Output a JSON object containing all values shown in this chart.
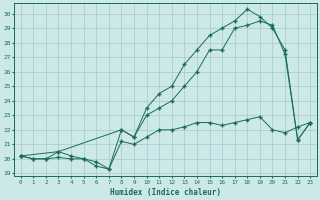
{
  "xlabel": "Humidex (Indice chaleur)",
  "xlim": [
    -0.5,
    23.5
  ],
  "ylim": [
    18.8,
    30.7
  ],
  "xticks": [
    0,
    1,
    2,
    3,
    4,
    5,
    6,
    7,
    8,
    9,
    10,
    11,
    12,
    13,
    14,
    15,
    16,
    17,
    18,
    19,
    20,
    21,
    22,
    23
  ],
  "yticks": [
    19,
    20,
    21,
    22,
    23,
    24,
    25,
    26,
    27,
    28,
    29,
    30
  ],
  "background_color": "#cce8e8",
  "grid_color": "#aacfcf",
  "line_color": "#1a6b5a",
  "line1_x": [
    0,
    1,
    2,
    3,
    4,
    5,
    6,
    7,
    8,
    9,
    10,
    11,
    12,
    13,
    14,
    15,
    16,
    17,
    18,
    19,
    20,
    21,
    22,
    23
  ],
  "line1_y": [
    20.2,
    20.0,
    20.0,
    20.1,
    20.0,
    20.0,
    19.5,
    19.3,
    21.2,
    21.0,
    21.5,
    22.0,
    22.0,
    22.2,
    22.5,
    22.5,
    22.3,
    22.5,
    22.7,
    22.9,
    22.0,
    21.8,
    22.2,
    22.5
  ],
  "line2_x": [
    0,
    1,
    2,
    3,
    4,
    5,
    6,
    7,
    8,
    9,
    10,
    11,
    12,
    13,
    14,
    15,
    16,
    17,
    18,
    19,
    20,
    21,
    22,
    23
  ],
  "line2_y": [
    20.2,
    20.0,
    20.0,
    20.5,
    20.2,
    20.0,
    19.8,
    19.3,
    22.0,
    21.5,
    23.0,
    23.5,
    24.0,
    25.0,
    26.0,
    27.5,
    27.5,
    29.0,
    29.2,
    29.5,
    29.2,
    27.2,
    21.3,
    22.5
  ],
  "line3_x": [
    0,
    3,
    8,
    9,
    10,
    11,
    12,
    13,
    14,
    15,
    16,
    17,
    18,
    19,
    20,
    21,
    22,
    23
  ],
  "line3_y": [
    20.2,
    20.5,
    22.0,
    21.5,
    23.5,
    24.5,
    25.0,
    26.5,
    27.5,
    28.5,
    29.0,
    29.5,
    30.3,
    29.8,
    29.0,
    27.5,
    21.3,
    22.5
  ]
}
